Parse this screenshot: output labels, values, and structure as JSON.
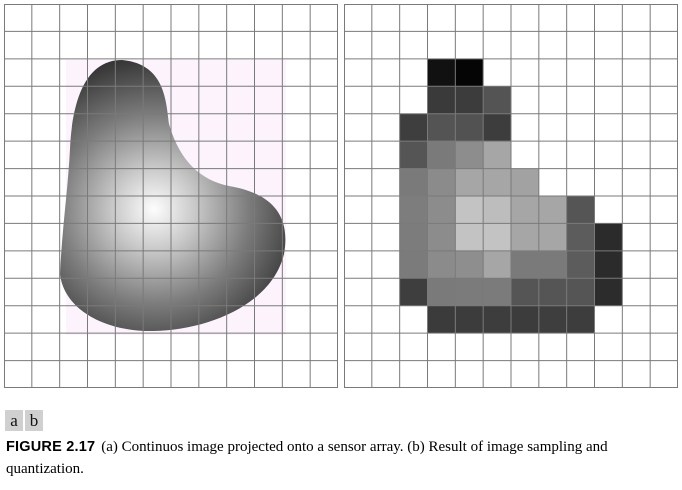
{
  "labels": {
    "a": "a",
    "b": "b"
  },
  "caption": {
    "figure_label": "FIGURE 2.17",
    "text": "(a) Continuos image projected onto a sensor array. (b) Result of image sampling and quantization."
  },
  "grid": {
    "rows": 14,
    "cols": 12
  },
  "quantized_image": {
    "rows": [
      [
        null,
        null,
        null,
        null,
        null,
        null,
        null,
        null,
        null,
        null,
        null,
        null
      ],
      [
        null,
        null,
        null,
        null,
        null,
        null,
        null,
        null,
        null,
        null,
        null,
        null
      ],
      [
        null,
        null,
        null,
        "#111111",
        "#050505",
        null,
        null,
        null,
        null,
        null,
        null,
        null
      ],
      [
        null,
        null,
        null,
        "#3a3a3a",
        "#3c3c3c",
        "#545454",
        null,
        null,
        null,
        null,
        null,
        null
      ],
      [
        null,
        null,
        "#3e3e3e",
        "#545454",
        "#525252",
        "#3d3d3d",
        null,
        null,
        null,
        null,
        null,
        null
      ],
      [
        null,
        null,
        "#555555",
        "#7a7a7a",
        "#8d8d8d",
        "#a6a6a6",
        null,
        null,
        null,
        null,
        null,
        null
      ],
      [
        null,
        null,
        "#7a7a7a",
        "#8b8b8b",
        "#a6a6a6",
        "#a6a6a6",
        "#a2a2a2",
        null,
        null,
        null,
        null,
        null
      ],
      [
        null,
        null,
        "#7d7d7d",
        "#8c8c8c",
        "#c3c3c3",
        "#bdbdbd",
        "#a6a6a6",
        "#a6a6a6",
        "#555555",
        null,
        null,
        null
      ],
      [
        null,
        null,
        "#7c7c7c",
        "#8c8c8c",
        "#c3c3c3",
        "#c3c3c3",
        "#a6a6a6",
        "#a6a6a6",
        "#5c5c5c",
        "#2b2b2b",
        null,
        null
      ],
      [
        null,
        null,
        "#7b7b7b",
        "#8b8b8b",
        "#8e8e8e",
        "#a6a6a6",
        "#7a7a7a",
        "#7a7a7a",
        "#5c5c5c",
        "#2b2b2b",
        null,
        null
      ],
      [
        null,
        null,
        "#3e3e3e",
        "#7a7a7a",
        "#7b7b7b",
        "#7b7b7b",
        "#555555",
        "#555555",
        "#555555",
        "#2c2c2c",
        null,
        null
      ],
      [
        null,
        null,
        null,
        "#3b3b3b",
        "#3c3c3c",
        "#3d3d3d",
        "#3c3c3c",
        "#3e3e3e",
        "#3d3d3d",
        null,
        null,
        null
      ],
      [
        null,
        null,
        null,
        null,
        null,
        null,
        null,
        null,
        null,
        null,
        null,
        null
      ],
      [
        null,
        null,
        null,
        null,
        null,
        null,
        null,
        null,
        null,
        null,
        null,
        null
      ]
    ]
  }
}
